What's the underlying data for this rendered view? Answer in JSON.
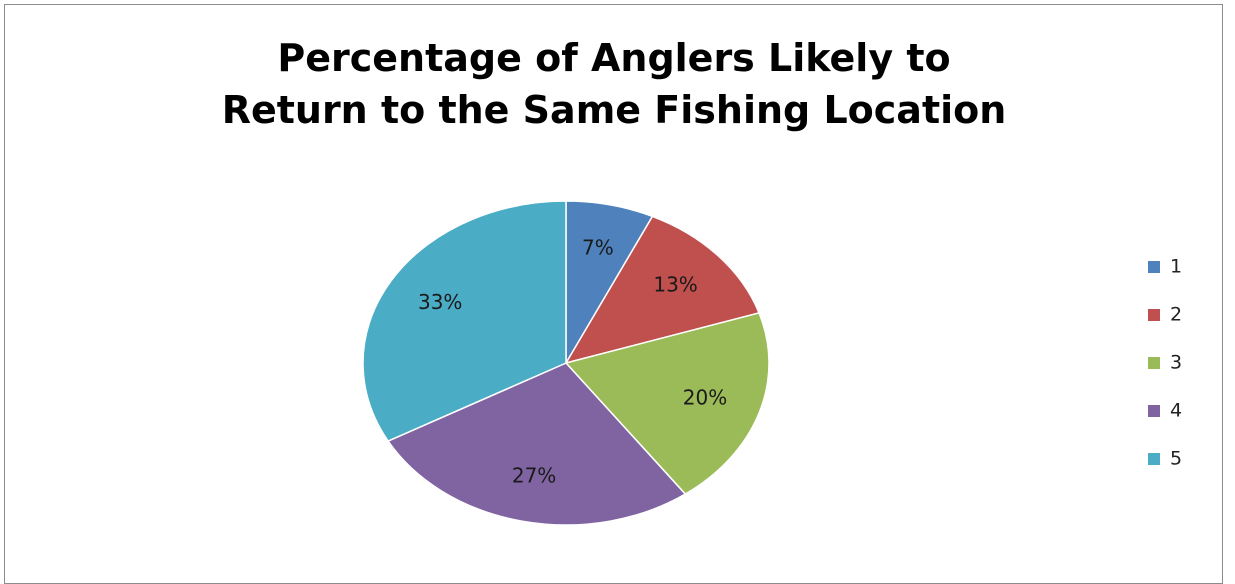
{
  "chart_data": {
    "type": "pie",
    "title_lines": [
      "Percentage of Anglers Likely to",
      "Return to the Same Fishing Location"
    ],
    "categories": [
      "1",
      "2",
      "3",
      "4",
      "5"
    ],
    "values": [
      7,
      13,
      20,
      27,
      33
    ],
    "data_labels": [
      "7%",
      "13%",
      "20%",
      "27%",
      "33%"
    ],
    "colors": [
      "#4F81BD",
      "#C0504D",
      "#9BBB59",
      "#8064A2",
      "#4BACC6"
    ],
    "legend_position": "right"
  }
}
